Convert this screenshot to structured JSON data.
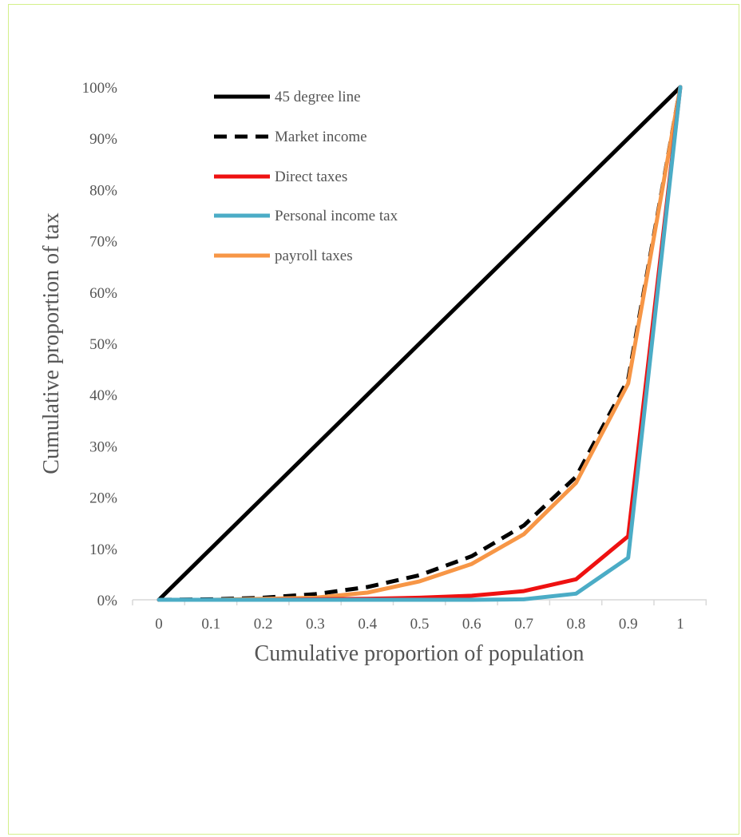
{
  "chart_data": {
    "type": "line",
    "xlabel": "Cumulative proportion of population",
    "ylabel": "Cumulative proportion of tax",
    "x": [
      0,
      0.1,
      0.2,
      0.3,
      0.4,
      0.5,
      0.6,
      0.7,
      0.8,
      0.9,
      1
    ],
    "x_tick_labels": [
      "0",
      "0.1",
      "0.2",
      "0.3",
      "0.4",
      "0.5",
      "0.6",
      "0.7",
      "0.8",
      "0.9",
      "1"
    ],
    "ylim": [
      0,
      1
    ],
    "y_ticks": [
      0,
      0.1,
      0.2,
      0.3,
      0.4,
      0.5,
      0.6,
      0.7,
      0.8,
      0.9,
      1.0
    ],
    "y_tick_labels": [
      "0%",
      "10%",
      "20%",
      "30%",
      "40%",
      "50%",
      "60%",
      "70%",
      "80%",
      "90%",
      "100%"
    ],
    "grid": false,
    "legend_position": "top-left",
    "series": [
      {
        "name": "45 degree line",
        "color": "#000000",
        "dash": "solid",
        "values": [
          0,
          0.1,
          0.2,
          0.3,
          0.4,
          0.5,
          0.6,
          0.7,
          0.8,
          0.9,
          1.0
        ]
      },
      {
        "name": "Market income",
        "color": "#000000",
        "dash": "dashed",
        "values": [
          0,
          0.001,
          0.004,
          0.011,
          0.025,
          0.048,
          0.085,
          0.145,
          0.24,
          0.43,
          1.0
        ]
      },
      {
        "name": "Direct taxes",
        "color": "#ee1111",
        "dash": "solid",
        "values": [
          0,
          0,
          0,
          0.001,
          0.002,
          0.004,
          0.008,
          0.017,
          0.04,
          0.124,
          1.0
        ]
      },
      {
        "name": "Personal income tax",
        "color": "#4bacc6",
        "dash": "solid",
        "values": [
          0,
          0,
          0,
          0,
          0,
          0,
          0,
          0.001,
          0.012,
          0.082,
          1.0
        ]
      },
      {
        "name": "payroll taxes",
        "color": "#f79646",
        "dash": "solid",
        "values": [
          0,
          0,
          0.002,
          0.004,
          0.014,
          0.036,
          0.07,
          0.128,
          0.228,
          0.422,
          1.0
        ]
      }
    ]
  }
}
